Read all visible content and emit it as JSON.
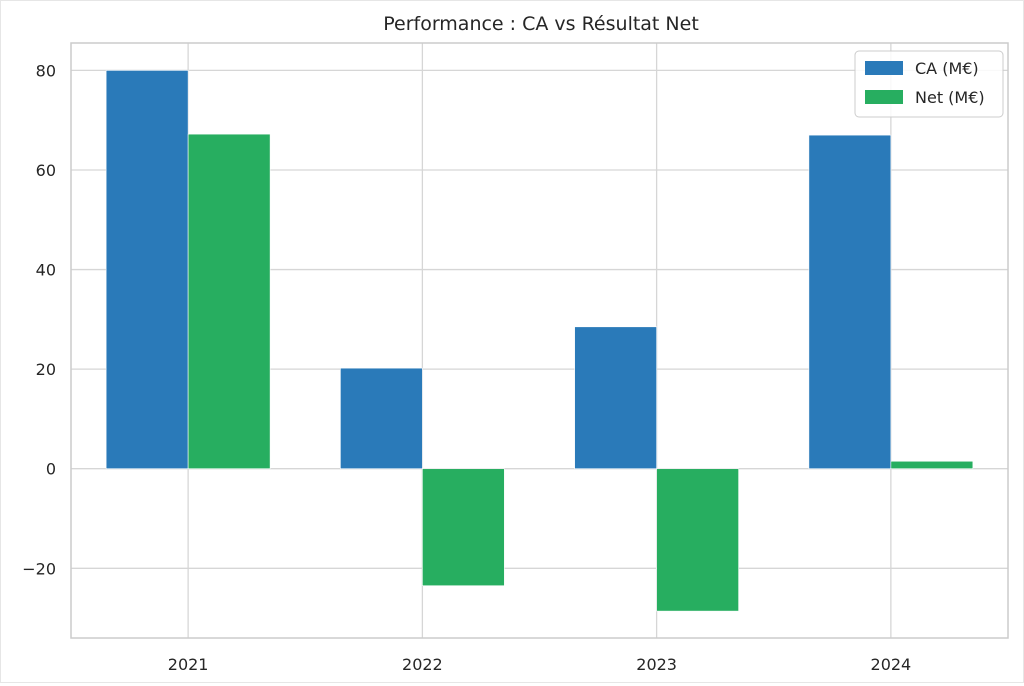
{
  "chart_data": {
    "type": "bar",
    "title": "Performance : CA vs Résultat Net",
    "xlabel": "",
    "ylabel": "",
    "categories": [
      "2021",
      "2022",
      "2023",
      "2024"
    ],
    "series": [
      {
        "name": "CA (M€)",
        "color": "#2a7ab9",
        "values": [
          80.0,
          20.2,
          28.5,
          67.0
        ]
      },
      {
        "name": "Net (M€)",
        "color": "#27ae60",
        "values": [
          67.2,
          -23.5,
          -28.6,
          1.5
        ]
      }
    ],
    "ylim": [
      -34.0,
      85.5
    ],
    "yticks": [
      -20,
      0,
      20,
      40,
      60,
      80
    ],
    "ytick_labels": [
      "−20",
      "0",
      "20",
      "40",
      "60",
      "80"
    ],
    "grid": true,
    "legend_position": "top-right"
  }
}
